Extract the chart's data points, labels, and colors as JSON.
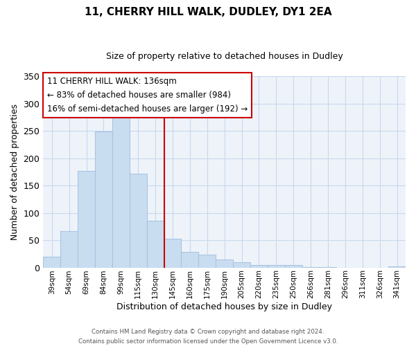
{
  "title1": "11, CHERRY HILL WALK, DUDLEY, DY1 2EA",
  "title2": "Size of property relative to detached houses in Dudley",
  "xlabel": "Distribution of detached houses by size in Dudley",
  "ylabel": "Number of detached properties",
  "bar_color": "#c9ddf0",
  "bar_edge_color": "#a8c4e0",
  "categories": [
    "39sqm",
    "54sqm",
    "69sqm",
    "84sqm",
    "99sqm",
    "115sqm",
    "130sqm",
    "145sqm",
    "160sqm",
    "175sqm",
    "190sqm",
    "205sqm",
    "220sqm",
    "235sqm",
    "250sqm",
    "266sqm",
    "281sqm",
    "296sqm",
    "311sqm",
    "326sqm",
    "341sqm"
  ],
  "values": [
    20,
    67,
    176,
    249,
    281,
    171,
    85,
    52,
    29,
    24,
    15,
    9,
    5,
    4,
    4,
    1,
    1,
    0,
    0,
    0,
    2
  ],
  "ylim": [
    0,
    350
  ],
  "yticks": [
    0,
    50,
    100,
    150,
    200,
    250,
    300,
    350
  ],
  "annotation_title": "11 CHERRY HILL WALK: 136sqm",
  "annotation_line1": "← 83% of detached houses are smaller (984)",
  "annotation_line2": "16% of semi-detached houses are larger (192) →",
  "vline_position": 6.5,
  "footer_line1": "Contains HM Land Registry data © Crown copyright and database right 2024.",
  "footer_line2": "Contains public sector information licensed under the Open Government Licence v3.0.",
  "vline_color": "#cc0000",
  "annotation_border_color": "#cc0000",
  "background_color": "#ffffff",
  "plot_bg_color": "#eef3fa",
  "grid_color": "#c8d8ec"
}
